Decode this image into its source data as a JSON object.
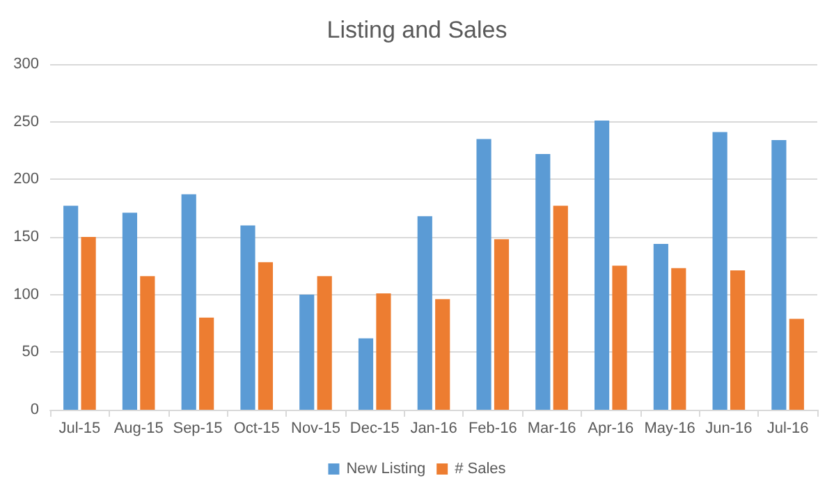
{
  "chart_data": {
    "type": "bar",
    "title": "Listing and Sales",
    "categories": [
      "Jul-15",
      "Aug-15",
      "Sep-15",
      "Oct-15",
      "Nov-15",
      "Dec-15",
      "Jan-16",
      "Feb-16",
      "Mar-16",
      "Apr-16",
      "May-16",
      "Jun-16",
      "Jul-16"
    ],
    "series": [
      {
        "name": "New Listing",
        "color": "#5b9bd5",
        "values": [
          177,
          171,
          187,
          160,
          100,
          62,
          168,
          235,
          222,
          251,
          144,
          241,
          234
        ]
      },
      {
        "name": "# Sales",
        "color": "#ed7d31",
        "values": [
          150,
          116,
          80,
          128,
          116,
          101,
          96,
          148,
          177,
          125,
          123,
          121,
          79
        ]
      }
    ],
    "ylim": [
      0,
      300
    ],
    "yticks": [
      0,
      50,
      100,
      150,
      200,
      250,
      300
    ],
    "grid": "y",
    "legend": "bottom"
  }
}
